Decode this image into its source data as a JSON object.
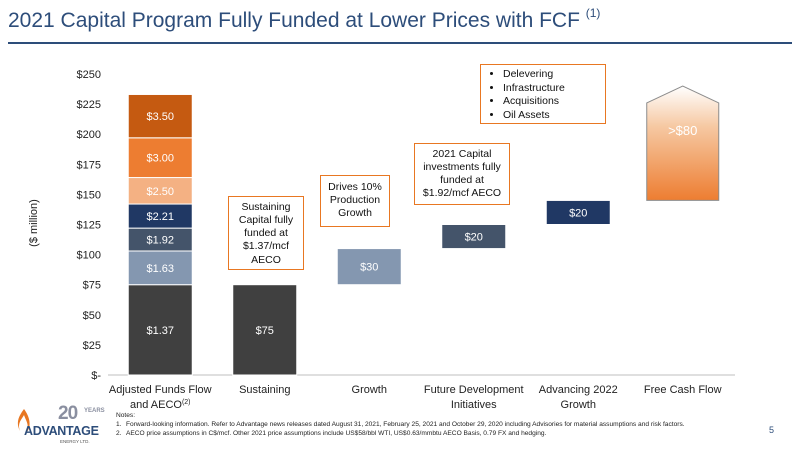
{
  "header": {
    "title": "2021 Capital Program Fully Funded at Lower Prices with FCF",
    "title_ref": "(1)"
  },
  "chart_data": {
    "type": "bar",
    "ylabel": "($ million)",
    "ylim": [
      0,
      250
    ],
    "yticks": [
      0,
      25,
      50,
      75,
      100,
      125,
      150,
      175,
      200,
      225,
      250
    ],
    "ytick_labels": [
      "$-",
      "$25",
      "$50",
      "$75",
      "$100",
      "$125",
      "$150",
      "$175",
      "$200",
      "$225",
      "$250"
    ],
    "categories": [
      "Adjusted Funds Flow and AECO(2)",
      "Sustaining",
      "Growth",
      "Future Development Initiatives",
      "Advancing 2022 Growth",
      "Free Cash Flow"
    ],
    "category_labels": [
      {
        "line1": "Adjusted Funds Flow",
        "line2": "and AECO",
        "sup": "(2)"
      },
      {
        "line1": "Sustaining",
        "line2": "",
        "sup": ""
      },
      {
        "line1": "Growth",
        "line2": "",
        "sup": ""
      },
      {
        "line1": "Future Development",
        "line2": "Initiatives",
        "sup": ""
      },
      {
        "line1": "Advancing 2022",
        "line2": "Growth",
        "sup": ""
      },
      {
        "line1": "Free Cash Flow",
        "line2": "",
        "sup": ""
      }
    ],
    "stacked_bar": {
      "category": "Adjusted Funds Flow and AECO(2)",
      "segments": [
        {
          "label": "$1.37",
          "bottom": 0,
          "top": 75,
          "color": "#404040"
        },
        {
          "label": "$1.63",
          "bottom": 75,
          "top": 103,
          "color": "#8497b0"
        },
        {
          "label": "$1.92",
          "bottom": 103,
          "top": 122,
          "color": "#44546a"
        },
        {
          "label": "$2.21",
          "bottom": 122,
          "top": 142,
          "color": "#203864"
        },
        {
          "label": "$2.50",
          "bottom": 142,
          "top": 164,
          "color": "#f4b183"
        },
        {
          "label": "$3.00",
          "bottom": 164,
          "top": 197,
          "color": "#ed7d31"
        },
        {
          "label": "$3.50",
          "bottom": 197,
          "top": 233,
          "color": "#c55a11"
        }
      ]
    },
    "waterfall_bars": [
      {
        "category": "Sustaining",
        "label": "$75",
        "bottom": 0,
        "top": 75,
        "color": "#404040"
      },
      {
        "category": "Growth",
        "label": "$30",
        "bottom": 75,
        "top": 105,
        "color": "#8497b0"
      },
      {
        "category": "Future Development Initiatives",
        "label": "$20",
        "bottom": 105,
        "top": 125,
        "color": "#44546a"
      },
      {
        "category": "Advancing 2022 Growth",
        "label": "$20",
        "bottom": 125,
        "top": 145,
        "color": "#203864"
      },
      {
        "category": "Free Cash Flow",
        "label": ">$80",
        "bottom": 145,
        "top": 240,
        "color": "#ed7d31"
      }
    ]
  },
  "callouts": {
    "sustaining": [
      "Sustaining",
      "Capital fully",
      "funded at",
      "$1.37/mcf",
      "AECO"
    ],
    "growth": [
      "Drives 10%",
      "Production",
      "Growth"
    ],
    "future": [
      "2021 Capital",
      "investments fully",
      "funded at",
      "$1.92/mcf AECO"
    ],
    "fcf_uses": [
      "Delevering",
      "Infrastructure",
      "Acquisitions",
      "Oil Assets"
    ]
  },
  "notes": {
    "heading": "Notes:",
    "items": [
      {
        "num": "1.",
        "text": "Forward-looking information. Refer to Advantage news releases dated August 31, 2021, February 25, 2021 and October 29, 2020 including Advisories for material assumptions and risk factors."
      },
      {
        "num": "2.",
        "text": "AECO price assumptions in C$/mcf.  Other 2021 price assumptions include US$58/bbl WTI, US$0.63/mmbtu AECO Basis, 0.79 FX and hedging."
      }
    ]
  },
  "logo": {
    "num": "20",
    "years": "YEARS",
    "name": "ADVANTAGE",
    "sub": "ENERGY LTD."
  },
  "page_number": "5",
  "colors": {
    "accent": "#e87722",
    "title": "#2d4d7a"
  }
}
